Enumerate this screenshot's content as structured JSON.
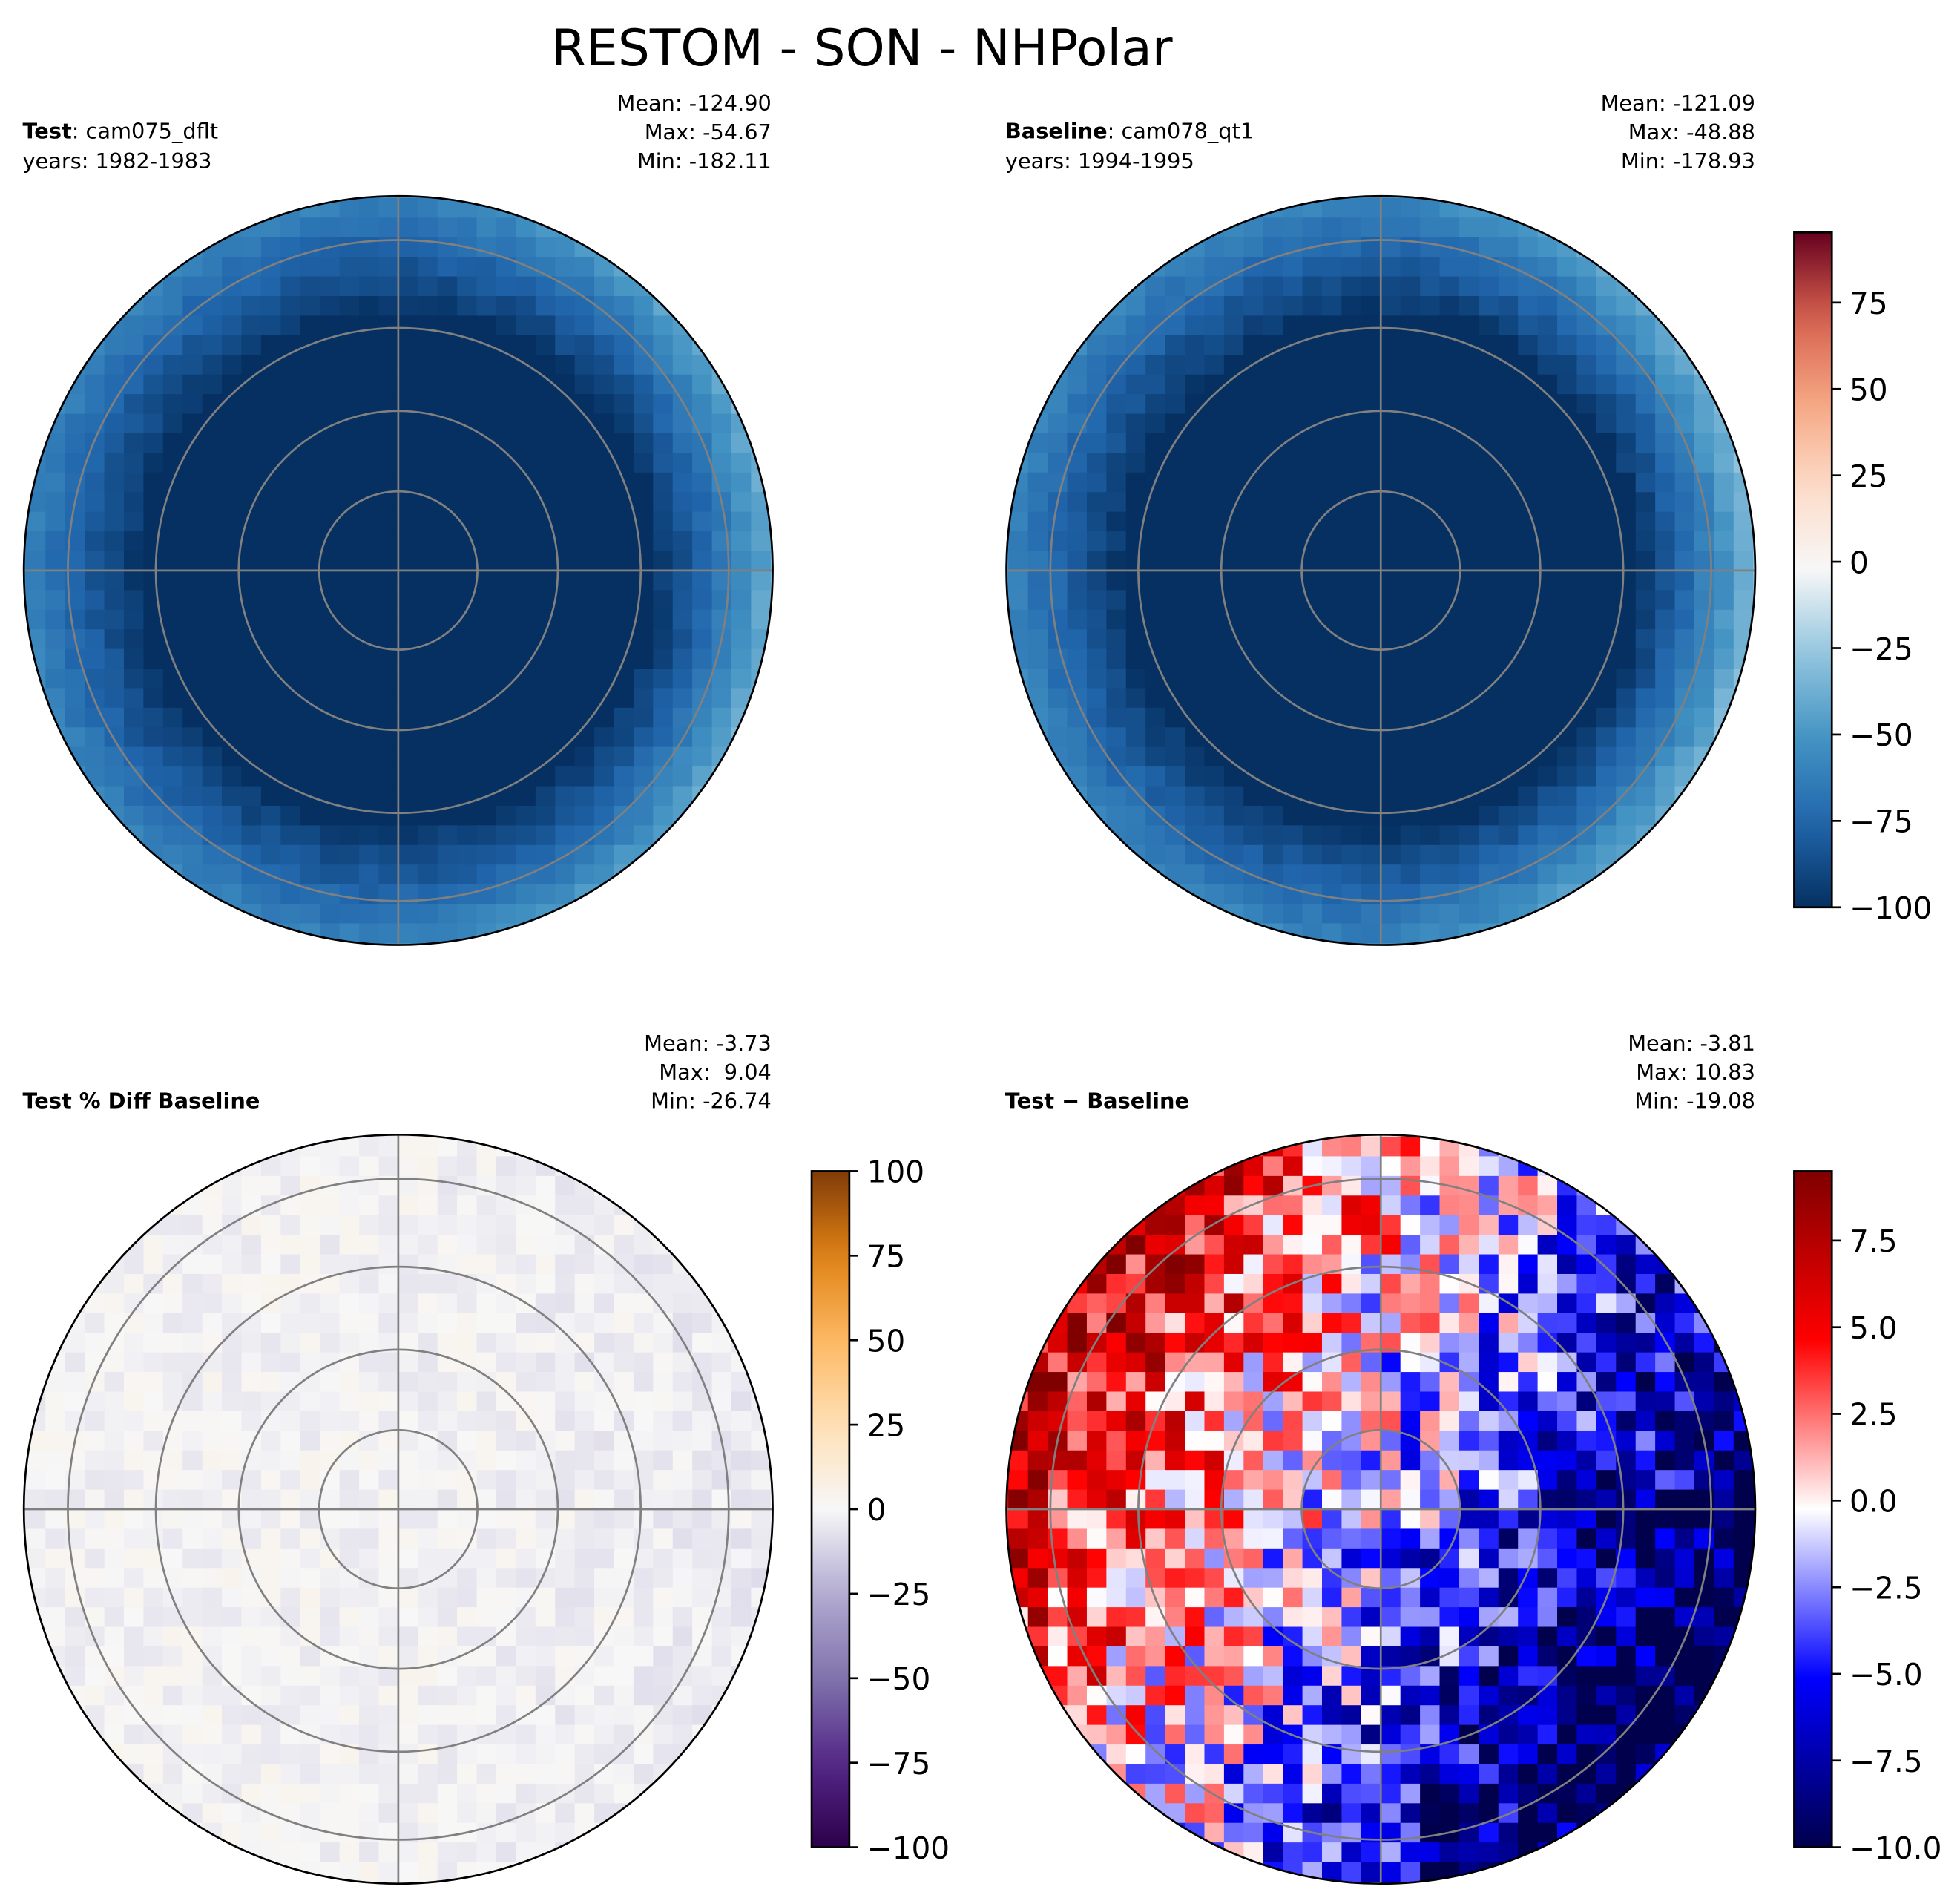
{
  "title": "RESTOM - SON - NHPolar",
  "chart_data": [
    {
      "type": "map",
      "name": "Test",
      "case": ": cam075_dflt",
      "years": "years: 1982-1983",
      "mean": "Mean: -124.90",
      "max": "Max: -54.67",
      "min": "Min: -182.11",
      "colormap": "RdBu_r"
    },
    {
      "type": "map",
      "name": "Baseline",
      "case": ": cam078_qt1",
      "years": "years: 1994-1995",
      "mean": "Mean: -121.09",
      "max": "Max: -48.88",
      "min": "Min: -178.93",
      "colormap": "RdBu_r",
      "colorbar": {
        "ylim": [
          -100,
          95.3
        ],
        "yticks": [
          {
            "value": -100,
            "label": "−100"
          },
          {
            "value": -75,
            "label": "−75"
          },
          {
            "value": -50,
            "label": "−50"
          },
          {
            "value": -25,
            "label": "−25"
          },
          0,
          25,
          50,
          75
        ]
      }
    },
    {
      "type": "map",
      "name": "Test % Diff Baseline",
      "mean": "Mean: -3.73",
      "max": "Max:  9.04",
      "min": "Min: -26.74",
      "colormap": "PuOr_r",
      "colorbar": {
        "ylim": [
          -100,
          100
        ],
        "yticks": [
          {
            "value": -100,
            "label": "−100"
          },
          {
            "value": -75,
            "label": "−75"
          },
          {
            "value": -50,
            "label": "−50"
          },
          {
            "value": -25,
            "label": "−25"
          },
          0,
          25,
          50,
          75,
          100
        ]
      }
    },
    {
      "type": "map",
      "name": "Test − Baseline",
      "mean": "Mean: -3.81",
      "max": "Max: 10.83",
      "min": "Min: -19.08",
      "colormap": "seismic",
      "colorbar": {
        "ylim": [
          -10,
          9.5
        ],
        "yticks": [
          {
            "value": -10,
            "label": "−10.0"
          },
          {
            "value": -7.5,
            "label": "−7.5"
          },
          {
            "value": -5,
            "label": "−5.0"
          },
          {
            "value": -2.5,
            "label": "−2.5"
          },
          {
            "value": 0,
            "label": "0.0"
          },
          2.5,
          {
            "value": 5,
            "label": "5.0"
          },
          7.5
        ]
      }
    }
  ]
}
